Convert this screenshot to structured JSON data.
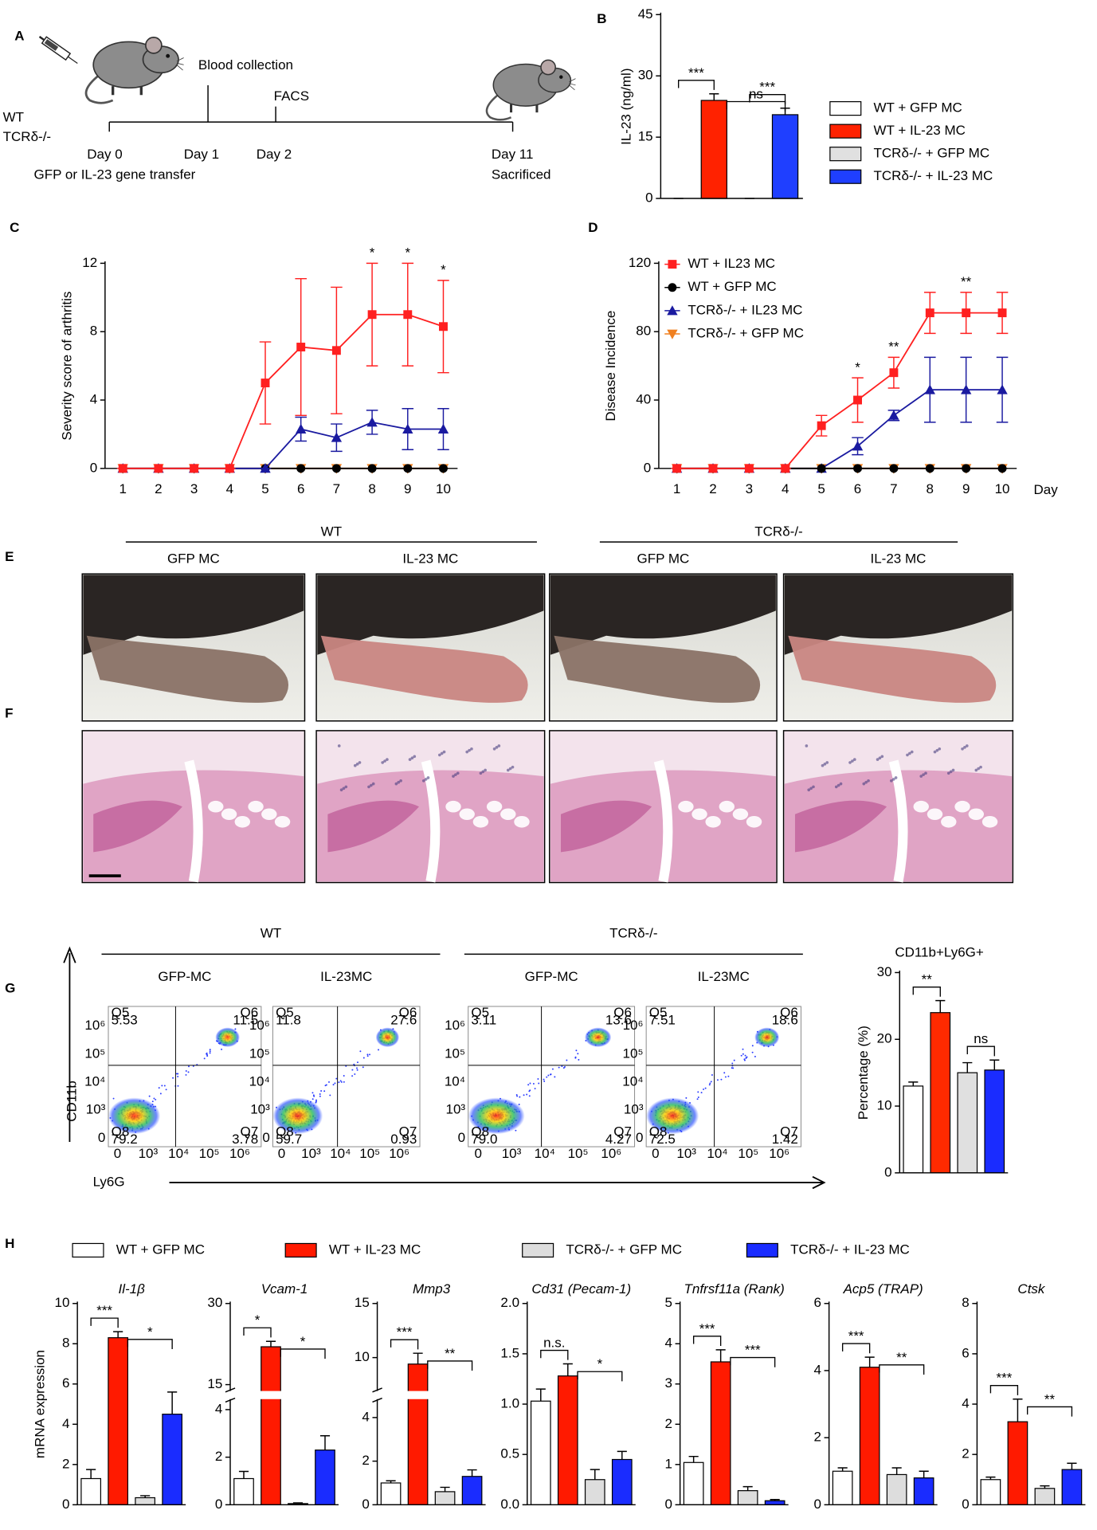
{
  "panel_labels": [
    "A",
    "B",
    "C",
    "D",
    "E",
    "F",
    "G",
    "H"
  ],
  "timeline": {
    "strains": [
      "WT",
      "TCRδ-/-"
    ],
    "days": [
      "Day 0",
      "Day 1",
      "Day 2",
      "Day 11"
    ],
    "events": [
      "Blood collection",
      "FACS"
    ],
    "transfer": "GFP or  IL-23 gene transfer",
    "endpoint": "Sacrificed"
  },
  "photos": {
    "groups": [
      {
        "name": "WT",
        "conditions": [
          "GFP MC",
          "IL-23 MC"
        ]
      },
      {
        "name": "TCRδ-/-",
        "conditions": [
          "GFP MC",
          "IL-23 MC"
        ]
      }
    ]
  },
  "facs": {
    "groups": [
      {
        "name": "WT",
        "conditions": [
          "GFP-MC",
          "IL-23MC"
        ]
      },
      {
        "name": "TCRδ-/-",
        "conditions": [
          "GFP-MC",
          "IL-23MC"
        ]
      }
    ],
    "y_axis": "CD11b",
    "x_axis": "Ly6G",
    "ticks": [
      "0",
      "10³",
      "10⁴",
      "10⁵",
      "10⁶"
    ],
    "plots": [
      [
        {
          "gate": "Q5",
          "value": "5.53"
        },
        {
          "gate": "Q6",
          "value": "11.5"
        },
        {
          "gate": "Q8",
          "value": "79.2"
        },
        {
          "gate": "Q7",
          "value": "3.78"
        }
      ],
      [
        {
          "gate": "Q5",
          "value": "11.8"
        },
        {
          "gate": "Q6",
          "value": "27.6"
        },
        {
          "gate": "Q8",
          "value": "59.7"
        },
        {
          "gate": "Q7",
          "value": "0.93"
        }
      ],
      [
        {
          "gate": "Q5",
          "value": "3.11"
        },
        {
          "gate": "Q6",
          "value": "13.6"
        },
        {
          "gate": "Q8",
          "value": "79.0"
        },
        {
          "gate": "Q7",
          "value": "4.27"
        }
      ],
      [
        {
          "gate": "Q5",
          "value": "7.51"
        },
        {
          "gate": "Q6",
          "value": "18.6"
        },
        {
          "gate": "Q8",
          "value": "72.5"
        },
        {
          "gate": "Q7",
          "value": "1.42"
        }
      ]
    ]
  },
  "chart_data": [
    {
      "type": "bar",
      "ylabel": "IL-23 (ng/ml)",
      "categories": [
        null
      ],
      "ylim": [
        0,
        45
      ],
      "yticks": [
        0,
        15,
        30,
        45
      ],
      "series": [
        {
          "name": "WT + GFP MC",
          "color": "#ffffff",
          "values": [
            0
          ],
          "errors": [
            0
          ]
        },
        {
          "name": "WT + IL-23 MC",
          "color": "#ff2200",
          "values": [
            24
          ],
          "errors": [
            1.6
          ]
        },
        {
          "name": "TCRδ-/- + GFP MC",
          "color": "#e0e0e0",
          "values": [
            0
          ],
          "errors": [
            0
          ]
        },
        {
          "name": "TCRδ-/- + IL-23 MC",
          "color": "#1f3fff",
          "values": [
            20.5
          ],
          "errors": [
            1.6
          ]
        }
      ],
      "annotations": [
        "***",
        "ns",
        "***"
      ]
    },
    {
      "type": "line",
      "ylabel": "Severity score of arthritis",
      "x": [
        1,
        2,
        3,
        4,
        5,
        6,
        7,
        8,
        9,
        10
      ],
      "xlim": [
        0.5,
        10.4
      ],
      "xticks": [
        1,
        2,
        3,
        4,
        5,
        6,
        7,
        8,
        9,
        10
      ],
      "ylim": [
        0,
        12
      ],
      "yticks": [
        0,
        4,
        8,
        12
      ],
      "series": [
        {
          "color": "#ff2020",
          "marker": "square",
          "values": [
            0,
            0,
            0,
            0,
            5,
            7.1,
            6.9,
            9,
            9,
            8.3
          ],
          "errors": [
            0,
            0,
            0,
            0,
            2.4,
            4,
            3.7,
            3,
            3,
            2.7
          ]
        },
        {
          "color": "#1a1aa0",
          "marker": "triangle",
          "values": [
            0,
            0,
            0,
            0,
            0,
            2.3,
            1.8,
            2.7,
            2.3,
            2.3
          ],
          "errors": [
            0,
            0,
            0,
            0,
            0,
            0.7,
            0.8,
            0.7,
            1.2,
            1.2
          ]
        },
        {
          "color": "#000000",
          "marker": "circle",
          "values": [
            0,
            0,
            0,
            0,
            0,
            0,
            0,
            0,
            0,
            0
          ],
          "errors": [
            0,
            0,
            0,
            0,
            0,
            0,
            0,
            0,
            0,
            0
          ]
        },
        {
          "color": "#f08020",
          "marker": "triangle-down",
          "values": [
            0,
            0,
            0,
            0,
            0,
            0,
            0,
            0,
            0,
            0
          ],
          "errors": [
            0,
            0,
            0,
            0,
            0,
            0,
            0,
            0,
            0,
            0
          ]
        }
      ],
      "annotations": [
        {
          "x": 8,
          "text": "*"
        },
        {
          "x": 9,
          "text": "*"
        },
        {
          "x": 10,
          "text": "*"
        }
      ]
    },
    {
      "type": "line",
      "ylabel": "Disease Incidence",
      "xlabel": "Day",
      "x": [
        1,
        2,
        3,
        4,
        5,
        6,
        7,
        8,
        9,
        10
      ],
      "xlim": [
        0.5,
        10.4
      ],
      "xticks": [
        1,
        2,
        3,
        4,
        5,
        6,
        7,
        8,
        9,
        10
      ],
      "ylim": [
        0,
        120
      ],
      "yticks": [
        0,
        40,
        80,
        120
      ],
      "legend": true,
      "series": [
        {
          "name": "WT + IL23 MC",
          "color": "#ff2020",
          "marker": "square",
          "values": [
            0,
            0,
            0,
            0,
            25,
            40,
            56,
            91,
            91,
            91
          ],
          "errors": [
            0,
            0,
            0,
            0,
            6,
            13,
            9,
            12,
            12,
            12
          ]
        },
        {
          "name": "WT + GFP MC",
          "color": "#000000",
          "marker": "circle",
          "values": [
            0,
            0,
            0,
            0,
            0,
            0,
            0,
            0,
            0,
            0
          ],
          "errors": [
            0,
            0,
            0,
            0,
            0,
            0,
            0,
            0,
            0,
            0
          ]
        },
        {
          "name": "TCRδ-/- + IL23 MC",
          "color": "#1a1aa0",
          "marker": "triangle",
          "values": [
            0,
            0,
            0,
            0,
            0,
            13,
            31,
            46,
            46,
            46
          ],
          "errors": [
            0,
            0,
            0,
            0,
            0,
            5,
            3,
            19,
            19,
            19
          ]
        },
        {
          "name": "TCRδ-/- + GFP MC",
          "color": "#f08020",
          "marker": "triangle-down",
          "values": [
            0,
            0,
            0,
            0,
            0,
            0,
            0,
            0,
            0,
            0
          ],
          "errors": [
            0,
            0,
            0,
            0,
            0,
            0,
            0,
            0,
            0,
            0
          ]
        }
      ],
      "annotations": [
        {
          "x": 6,
          "text": "*"
        },
        {
          "x": 7,
          "text": "**"
        },
        {
          "x": 9,
          "text": "**"
        }
      ]
    },
    {
      "type": "bar",
      "title": "CD11b+Ly6G+",
      "ylabel": "Percentage (%)",
      "categories": [
        null
      ],
      "ylim": [
        0,
        30
      ],
      "yticks": [
        0,
        10,
        20,
        30
      ],
      "series": [
        {
          "color": "#ffffff",
          "values": [
            13
          ],
          "errors": [
            0.6
          ]
        },
        {
          "color": "#ff2a00",
          "values": [
            24
          ],
          "errors": [
            1.8
          ]
        },
        {
          "color": "#e0e0e0",
          "values": [
            15
          ],
          "errors": [
            1.5
          ]
        },
        {
          "color": "#1a2cff",
          "values": [
            15.4
          ],
          "errors": [
            1.5
          ]
        }
      ],
      "annotations": [
        "**",
        "ns"
      ]
    },
    {
      "type": "bar",
      "title": "Il-1β",
      "ylabel": "mRNA expression",
      "categories": [
        null
      ],
      "ylim": [
        0,
        10
      ],
      "yticks": [
        0,
        2,
        4,
        6,
        8,
        10
      ],
      "series": [
        {
          "name": "WT + GFP MC",
          "color": "#ffffff",
          "values": [
            1.3
          ],
          "errors": [
            0.45
          ]
        },
        {
          "name": "WT + IL-23 MC",
          "color": "#ff1a00",
          "values": [
            8.3
          ],
          "errors": [
            0.3
          ]
        },
        {
          "name": "TCRδ-/- + GFP MC",
          "color": "#dddddd",
          "values": [
            0.35
          ],
          "errors": [
            0.1
          ]
        },
        {
          "name": "TCRδ-/- + IL-23 MC",
          "color": "#1a2cff",
          "values": [
            4.5
          ],
          "errors": [
            1.1
          ]
        }
      ],
      "annotations": [
        "***",
        "*"
      ]
    },
    {
      "type": "bar",
      "title": "Vcam-1",
      "categories": [
        null
      ],
      "ylim": [
        0,
        30
      ],
      "ybreak": [
        4.4,
        14
      ],
      "yticks": [
        0,
        2,
        4,
        15,
        30
      ],
      "series": [
        {
          "color": "#ffffff",
          "values": [
            1.1
          ],
          "errors": [
            0.3
          ]
        },
        {
          "color": "#ff1a00",
          "values": [
            22
          ],
          "errors": [
            1
          ]
        },
        {
          "color": "#dddddd",
          "values": [
            0.05
          ],
          "errors": [
            0.03
          ]
        },
        {
          "color": "#1a2cff",
          "values": [
            2.3
          ],
          "errors": [
            0.6
          ]
        }
      ],
      "annotations": [
        "*",
        "*"
      ]
    },
    {
      "type": "bar",
      "title": "Mmp3",
      "categories": [
        null
      ],
      "ylim": [
        0,
        15
      ],
      "ybreak": [
        4.8,
        7
      ],
      "yticks": [
        0,
        2,
        4,
        10,
        15
      ],
      "series": [
        {
          "color": "#ffffff",
          "values": [
            1.0
          ],
          "errors": [
            0.1
          ]
        },
        {
          "color": "#ff1a00",
          "values": [
            9.4
          ],
          "errors": [
            1.0
          ]
        },
        {
          "color": "#dddddd",
          "values": [
            0.6
          ],
          "errors": [
            0.2
          ]
        },
        {
          "color": "#1a2cff",
          "values": [
            1.3
          ],
          "errors": [
            0.3
          ]
        }
      ],
      "annotations": [
        "***",
        "**"
      ]
    },
    {
      "type": "bar",
      "title": "Cd31 (Pecam-1)",
      "categories": [
        null
      ],
      "ylim": [
        0,
        2
      ],
      "yticks": [
        {
          "value": 0,
          "label": "0.0"
        },
        0.5,
        {
          "value": 1,
          "label": "1.0"
        },
        1.5,
        {
          "value": 2,
          "label": "2.0"
        }
      ],
      "series": [
        {
          "color": "#ffffff",
          "values": [
            1.03
          ],
          "errors": [
            0.12
          ]
        },
        {
          "color": "#ff1a00",
          "values": [
            1.28
          ],
          "errors": [
            0.12
          ]
        },
        {
          "color": "#dddddd",
          "values": [
            0.25
          ],
          "errors": [
            0.1
          ]
        },
        {
          "color": "#1a2cff",
          "values": [
            0.45
          ],
          "errors": [
            0.08
          ]
        }
      ],
      "annotations": [
        "n.s.",
        "*"
      ]
    },
    {
      "type": "bar",
      "title": "Tnfrsf11a  (Rank)",
      "categories": [
        null
      ],
      "ylim": [
        0,
        5
      ],
      "yticks": [
        0,
        1,
        2,
        3,
        4,
        5
      ],
      "series": [
        {
          "color": "#ffffff",
          "values": [
            1.05
          ],
          "errors": [
            0.15
          ]
        },
        {
          "color": "#ff1a00",
          "values": [
            3.55
          ],
          "errors": [
            0.3
          ]
        },
        {
          "color": "#dddddd",
          "values": [
            0.35
          ],
          "errors": [
            0.1
          ]
        },
        {
          "color": "#1a2cff",
          "values": [
            0.1
          ],
          "errors": [
            0.03
          ]
        }
      ],
      "annotations": [
        "***",
        "***"
      ]
    },
    {
      "type": "bar",
      "title": "Acp5 (TRAP)",
      "categories": [
        null
      ],
      "ylim": [
        0,
        6
      ],
      "yticks": [
        0,
        2,
        4,
        6
      ],
      "series": [
        {
          "color": "#ffffff",
          "values": [
            1.0
          ],
          "errors": [
            0.1
          ]
        },
        {
          "color": "#ff1a00",
          "values": [
            4.1
          ],
          "errors": [
            0.3
          ]
        },
        {
          "color": "#dddddd",
          "values": [
            0.9
          ],
          "errors": [
            0.2
          ]
        },
        {
          "color": "#1a2cff",
          "values": [
            0.8
          ],
          "errors": [
            0.2
          ]
        }
      ],
      "annotations": [
        "***",
        "**"
      ]
    },
    {
      "type": "bar",
      "title": "Ctsk",
      "categories": [
        null
      ],
      "ylim": [
        0,
        8
      ],
      "yticks": [
        0,
        2,
        4,
        6,
        8
      ],
      "series": [
        {
          "color": "#ffffff",
          "values": [
            1.0
          ],
          "errors": [
            0.1
          ]
        },
        {
          "color": "#ff1a00",
          "values": [
            3.3
          ],
          "errors": [
            0.9
          ]
        },
        {
          "color": "#dddddd",
          "values": [
            0.65
          ],
          "errors": [
            0.1
          ]
        },
        {
          "color": "#1a2cff",
          "values": [
            1.4
          ],
          "errors": [
            0.25
          ]
        }
      ],
      "annotations": [
        "***",
        "**"
      ]
    }
  ]
}
